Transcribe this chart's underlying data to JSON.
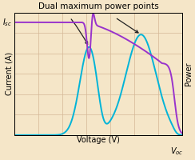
{
  "title": "Dual maximum power points",
  "xlabel": "Voltage (V)",
  "ylabel": "Current (A)",
  "ylabel_right": "Power",
  "label_isc": "$I_{sc}$",
  "label_voc": "$V_{oc}$",
  "bg_color": "#f5e6c8",
  "grid_color": "#d4b896",
  "iv_color": "#9933cc",
  "power_color": "#00b4d8",
  "arrow_color": "#222222",
  "title_fontsize": 7.5,
  "axis_fontsize": 7,
  "figsize": [
    2.44,
    2.0
  ],
  "dpi": 100
}
